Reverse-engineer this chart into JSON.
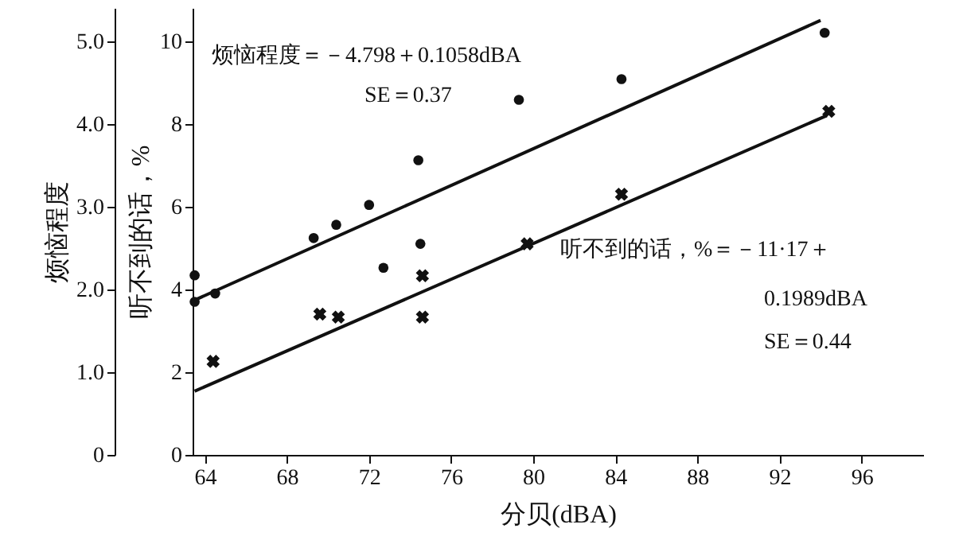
{
  "chart_data": {
    "type": "scatter",
    "xlabel": "分贝(dBA)",
    "ylabel": "烦恼程度",
    "y2label": "听不到的话，%",
    "xlim": [
      63.4,
      99
    ],
    "xticks": [
      64,
      68,
      72,
      76,
      80,
      84,
      88,
      92,
      96
    ],
    "ylim": [
      0,
      5.4
    ],
    "yticks": [
      0,
      {
        "value": 1,
        "label": "1.0"
      },
      {
        "value": 2,
        "label": "2.0"
      },
      {
        "value": 3,
        "label": "3.0"
      },
      {
        "value": 4,
        "label": "4.0"
      },
      {
        "value": 5,
        "label": "5.0"
      }
    ],
    "y2lim": [
      0,
      10.8
    ],
    "y2ticks": [
      0,
      2,
      4,
      6,
      8,
      10
    ],
    "grid": false,
    "series": [
      {
        "marker": "circle",
        "color": "#111111",
        "axis": "y",
        "x": [
          63.5,
          63.5,
          64.5,
          69.3,
          70.4,
          72.0,
          72.7,
          74.4,
          74.5,
          79.3,
          84.3,
          94.2
        ],
        "values": [
          2.17,
          1.85,
          1.95,
          2.62,
          2.78,
          3.02,
          2.26,
          3.56,
          2.55,
          4.29,
          4.54,
          5.1
        ]
      },
      {
        "marker": "cross",
        "color": "#111111",
        "axis": "y2",
        "x": [
          64.4,
          69.6,
          70.5,
          74.6,
          74.6,
          79.7,
          84.3,
          94.4
        ],
        "values": [
          2.26,
          3.4,
          3.33,
          4.33,
          3.33,
          5.1,
          6.3,
          8.3
        ]
      },
      {
        "type": "line",
        "color": "#111111",
        "axis": "y",
        "x": [
          63.5,
          94.0
        ],
        "values": [
          1.87,
          5.25
        ]
      },
      {
        "type": "line",
        "color": "#111111",
        "axis": "y2",
        "x": [
          63.5,
          94.3
        ],
        "values": [
          1.54,
          8.2
        ]
      }
    ],
    "annotations": [
      "烦恼程度＝－4.798＋0.1058dBA",
      "SE＝0.37",
      "听不到的话，%＝－11·17＋",
      "0.1989dBA",
      "SE＝0.44"
    ]
  }
}
